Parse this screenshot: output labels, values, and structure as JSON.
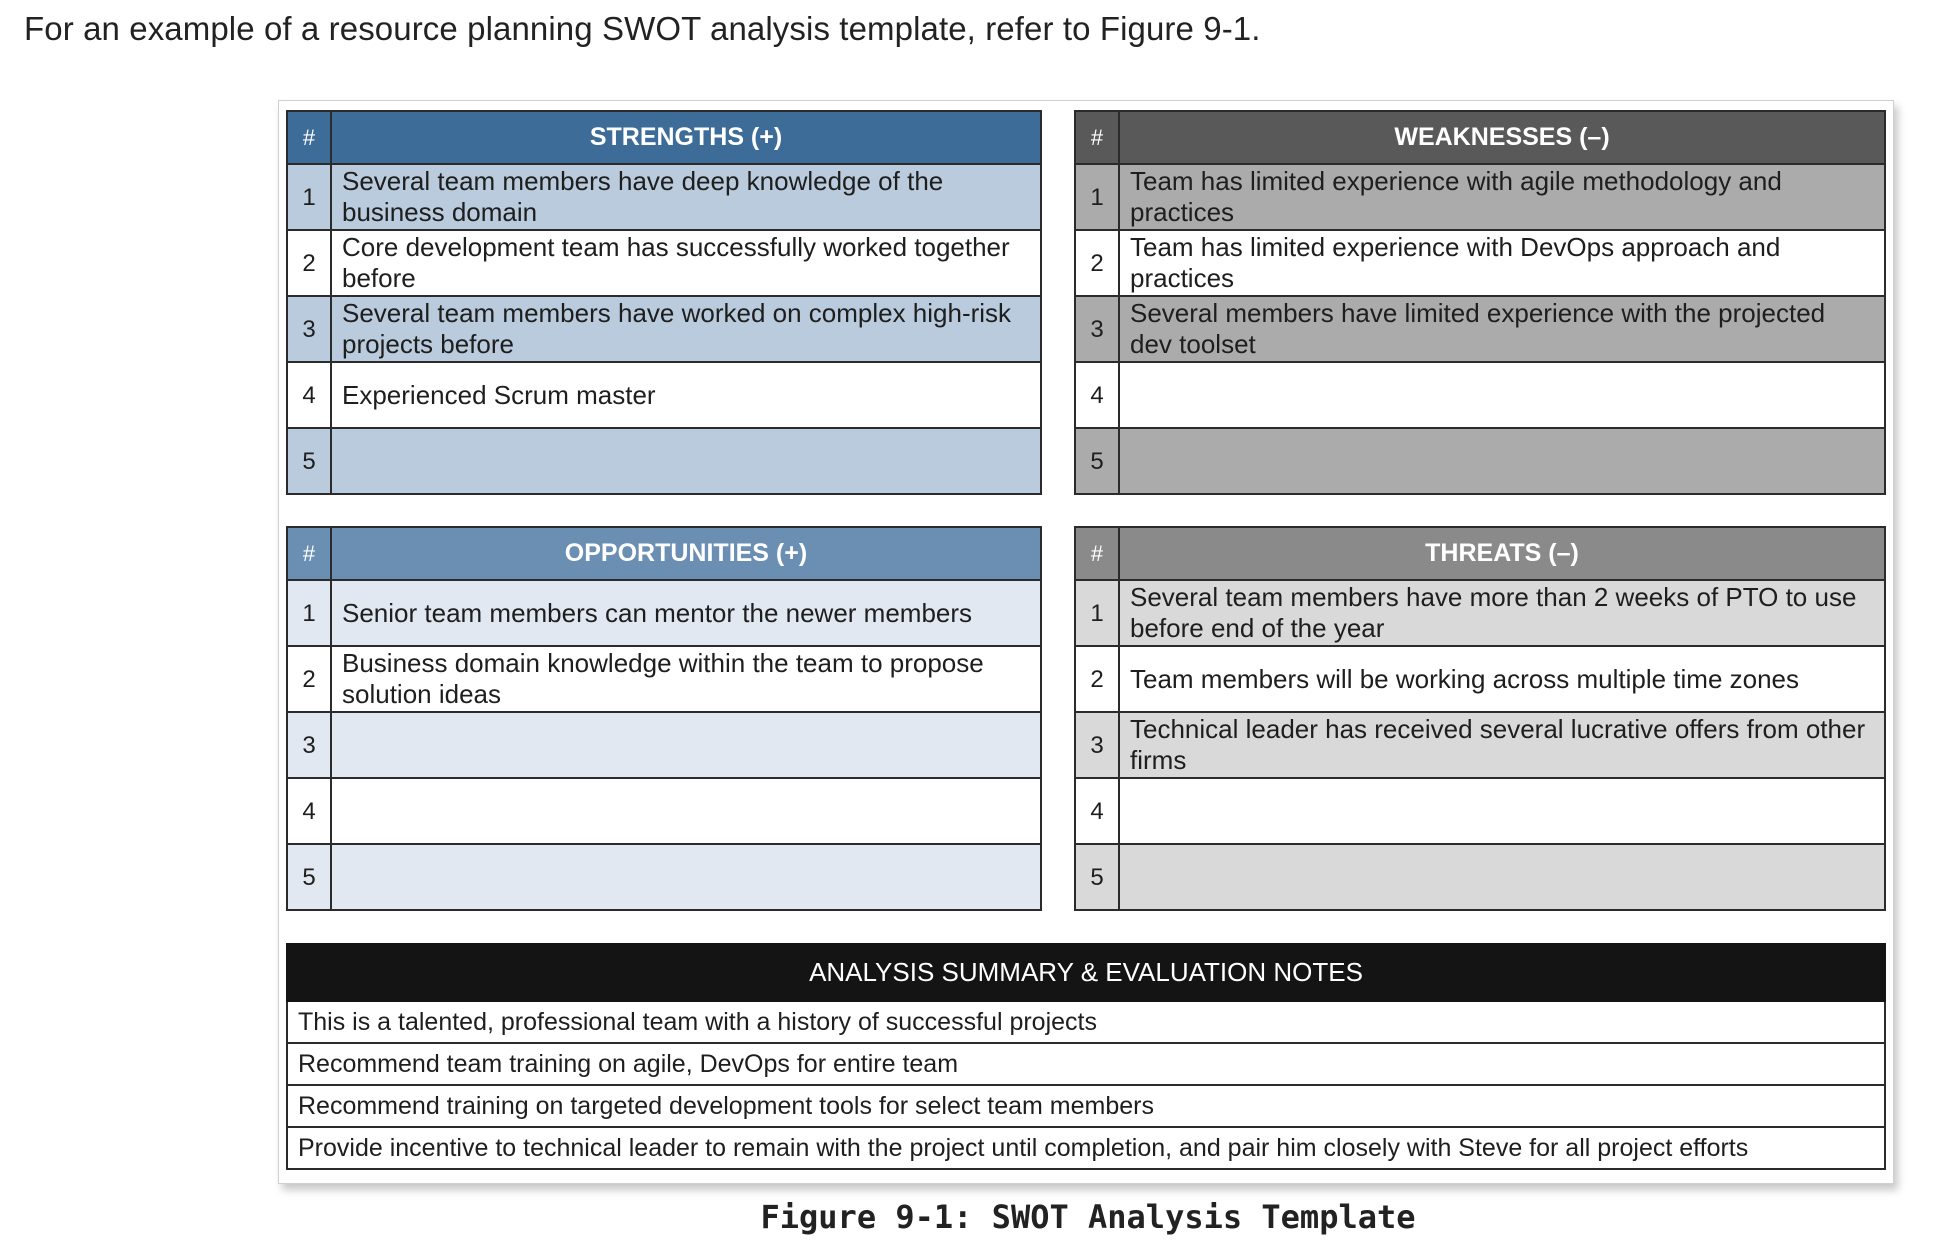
{
  "intro": "For an example of a resource planning SWOT analysis template, refer to Figure 9-1.",
  "hash": "#",
  "strengths": {
    "title": "STRENGTHS (+)",
    "rows": [
      {
        "n": "1",
        "text": "Several team members have deep knowledge of the business domain"
      },
      {
        "n": "2",
        "text": "Core development team has successfully worked together before"
      },
      {
        "n": "3",
        "text": "Several team members have worked on complex high-risk projects before"
      },
      {
        "n": "4",
        "text": "Experienced Scrum master"
      },
      {
        "n": "5",
        "text": ""
      }
    ]
  },
  "weaknesses": {
    "title": "WEAKNESSES (–)",
    "rows": [
      {
        "n": "1",
        "text": "Team has limited experience with agile methodology and practices"
      },
      {
        "n": "2",
        "text": "Team has limited experience with DevOps approach and practices"
      },
      {
        "n": "3",
        "text": "Several members have limited experience with the projected dev toolset"
      },
      {
        "n": "4",
        "text": ""
      },
      {
        "n": "5",
        "text": ""
      }
    ]
  },
  "opportunities": {
    "title": "OPPORTUNITIES (+)",
    "rows": [
      {
        "n": "1",
        "text": "Senior team members can mentor the newer members"
      },
      {
        "n": "2",
        "text": "Business domain knowledge within the team to propose solution ideas"
      },
      {
        "n": "3",
        "text": ""
      },
      {
        "n": "4",
        "text": ""
      },
      {
        "n": "5",
        "text": ""
      }
    ]
  },
  "threats": {
    "title": "THREATS (–)",
    "rows": [
      {
        "n": "1",
        "text": "Several team members have more than 2 weeks of PTO to use before end of the year"
      },
      {
        "n": "2",
        "text": "Team members will be working across multiple time zones"
      },
      {
        "n": "3",
        "text": "Technical leader has received several lucrative offers from other firms"
      },
      {
        "n": "4",
        "text": ""
      },
      {
        "n": "5",
        "text": ""
      }
    ]
  },
  "summary": {
    "title": "ANALYSIS SUMMARY & EVALUATION NOTES",
    "rows": [
      "This is a talented, professional team with a history of successful projects",
      "Recommend team training on agile, DevOps for entire team",
      "Recommend training on targeted development tools for select team members",
      "Provide incentive to technical leader to remain with the project until completion, and pair him closely with Steve for all project efforts"
    ]
  },
  "caption": "Figure 9-1: SWOT Analysis Template"
}
